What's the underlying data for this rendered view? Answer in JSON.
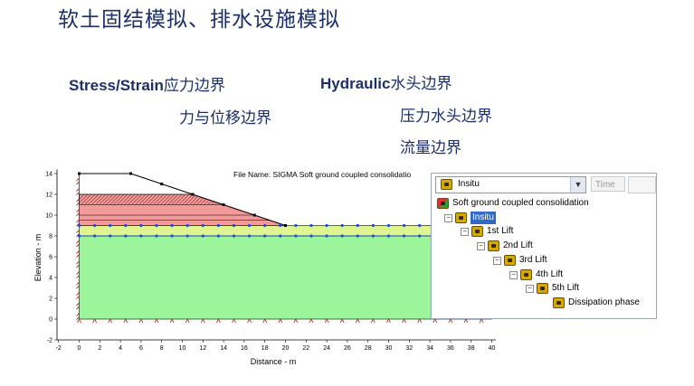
{
  "page": {
    "title": "软土固结模拟、排水设施模拟",
    "stress_label_en": "Stress/Strain",
    "stress_label_cn": "应力边界",
    "stress_sub": "力与位移边界",
    "hydraulic_label_en": "Hydraulic",
    "hydraulic_label_cn": "水头边界",
    "hydraulic_sub1": "压力水头边界",
    "hydraulic_sub2": "流量边界"
  },
  "chart_data": {
    "type": "diagram",
    "file_name": "File Name: SIGMA Soft ground coupled consolidatio",
    "xlabel": "Distance - m",
    "ylabel": "Elevation - m",
    "x_ticks": [
      -2,
      0,
      2,
      4,
      6,
      8,
      10,
      12,
      14,
      16,
      18,
      20,
      22,
      24,
      26,
      28,
      30,
      32,
      34,
      36,
      38,
      40
    ],
    "y_ticks": [
      -2,
      0,
      2,
      4,
      6,
      8,
      10,
      12,
      14
    ],
    "xlim": [
      -2,
      40
    ],
    "ylim": [
      -2,
      14.5
    ],
    "embankment_profile": [
      [
        0,
        14
      ],
      [
        5,
        14
      ],
      [
        8,
        13
      ],
      [
        11,
        12
      ],
      [
        14,
        11
      ],
      [
        17,
        10
      ],
      [
        20,
        9
      ]
    ],
    "foundation_top": 9,
    "water_level": 8,
    "colors": {
      "foundation": "#9cf59a",
      "drain_layer": "#dff590",
      "embankment_lower": "#f29999",
      "embankment_upper": "#ffffff"
    }
  },
  "tree": {
    "combo_value": "Insitu",
    "time_label": "Time",
    "items": [
      {
        "label": "Soft ground coupled consolidation",
        "level": 0
      },
      {
        "label": "Insitu",
        "level": 1,
        "selected": true
      },
      {
        "label": "1st Lift",
        "level": 2
      },
      {
        "label": "2nd Lift",
        "level": 3
      },
      {
        "label": "3rd Lift",
        "level": 4
      },
      {
        "label": "4th Lift",
        "level": 5
      },
      {
        "label": "5th Lift",
        "level": 6
      },
      {
        "label": "Dissipation  phase",
        "level": 7
      }
    ]
  }
}
